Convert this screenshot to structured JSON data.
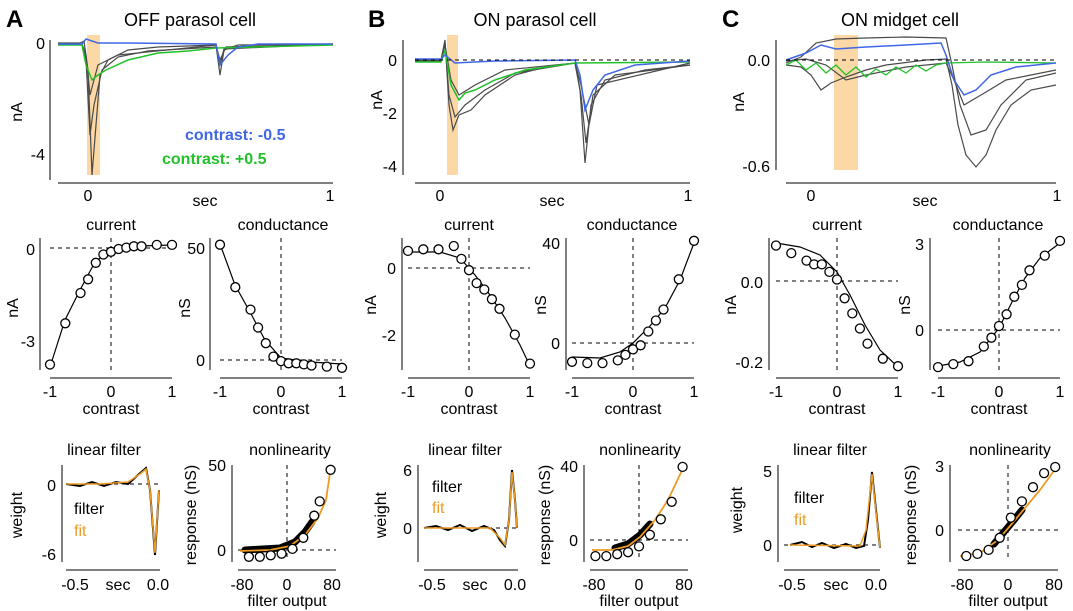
{
  "figure": {
    "colors": {
      "trace": "#4a4a4a",
      "blue": "#3f67e6",
      "green": "#21c12a",
      "orange": "#ee9b25",
      "shade": "#fbd8a5",
      "black": "#000000"
    },
    "columns": [
      {
        "letter": "A",
        "title": "OFF parasol cell",
        "legend": [
          "contrast: -0.5",
          "contrast: +0.5"
        ],
        "traces": {
          "xlabel": "sec",
          "ylabel": "nA",
          "xticks": [
            "0",
            "1"
          ],
          "yticks": [
            "0",
            "-4"
          ]
        },
        "current": {
          "title": "current",
          "xlabel": "contrast",
          "ylabel": "nA",
          "xticks": [
            "-1",
            "0",
            "1"
          ],
          "yticks": [
            "0",
            "-3"
          ]
        },
        "conductance": {
          "title": "conductance",
          "xlabel": "contrast",
          "ylabel": "nS",
          "xticks": [
            "-1",
            "0",
            "1"
          ],
          "yticks": [
            "50",
            "0"
          ]
        },
        "filter": {
          "title": "linear filter",
          "xlabel": "sec",
          "ylabel": "weight",
          "xticks": [
            "-0.5",
            "0.0"
          ],
          "yticks": [
            "0",
            "-6"
          ],
          "legend": [
            "filter",
            "fit"
          ]
        },
        "nonlin": {
          "title": "nonlinearity",
          "xlabel": "filter output",
          "ylabel": "response (nS)",
          "xticks": [
            "-80",
            "0",
            "80"
          ],
          "yticks": [
            "50",
            "0"
          ]
        }
      },
      {
        "letter": "B",
        "title": "ON parasol cell",
        "traces": {
          "xlabel": "sec",
          "ylabel": "nA",
          "xticks": [
            "0",
            "1"
          ],
          "yticks": [
            "0",
            "-2",
            "-4"
          ]
        },
        "current": {
          "title": "current",
          "xlabel": "contrast",
          "ylabel": "nA",
          "xticks": [
            "-1",
            "0",
            "1"
          ],
          "yticks": [
            "0",
            "-2"
          ]
        },
        "conductance": {
          "title": "conductance",
          "xlabel": "contrast",
          "ylabel": "nS",
          "xticks": [
            "-1",
            "0",
            "1"
          ],
          "yticks": [
            "40",
            "0"
          ]
        },
        "filter": {
          "title": "linear filter",
          "xlabel": "sec",
          "ylabel": "weight",
          "xticks": [
            "-0.5",
            "0.0"
          ],
          "yticks": [
            "6",
            "0"
          ],
          "legend": [
            "filter",
            "fit"
          ]
        },
        "nonlin": {
          "title": "nonlinearity",
          "xlabel": "filter output",
          "ylabel": "response (nS)",
          "xticks": [
            "-80",
            "0",
            "80"
          ],
          "yticks": [
            "40",
            "0"
          ]
        }
      },
      {
        "letter": "C",
        "title": "ON midget cell",
        "traces": {
          "xlabel": "sec",
          "ylabel": "nA",
          "xticks": [
            "0",
            "1"
          ],
          "yticks": [
            "0.0",
            "-0.6"
          ]
        },
        "current": {
          "title": "current",
          "xlabel": "contrast",
          "ylabel": "nA",
          "xticks": [
            "-1",
            "0",
            "1"
          ],
          "yticks": [
            "0.0",
            "-0.2"
          ]
        },
        "conductance": {
          "title": "conductance",
          "xlabel": "contrast",
          "ylabel": "nS",
          "xticks": [
            "-1",
            "0",
            "1"
          ],
          "yticks": [
            "3",
            "0"
          ]
        },
        "filter": {
          "title": "linear filter",
          "xlabel": "sec",
          "ylabel": "weight",
          "xticks": [
            "-0.5",
            "0.0"
          ],
          "yticks": [
            "5",
            "0"
          ],
          "legend": [
            "filter",
            "fit"
          ]
        },
        "nonlin": {
          "title": "nonlinearity",
          "xlabel": "filter output",
          "ylabel": "response (nS)",
          "xticks": [
            "-80",
            "0",
            "80"
          ],
          "yticks": [
            "3",
            "0"
          ]
        }
      }
    ]
  },
  "chart_data": [
    {
      "type": "line",
      "panel": "A current",
      "x": [
        -1,
        -0.75,
        -0.5,
        -0.375,
        -0.25,
        -0.125,
        0,
        0.125,
        0.25,
        0.375,
        0.5,
        0.75,
        1
      ],
      "y": [
        -4.2,
        -2.7,
        -1.6,
        -1.1,
        -0.5,
        -0.2,
        -0.1,
        0,
        0.05,
        0.1,
        0.1,
        0.15,
        0.15
      ],
      "ylim": [
        -4.4,
        0.4
      ]
    },
    {
      "type": "line",
      "panel": "A conductance",
      "x": [
        -1,
        -0.75,
        -0.5,
        -0.375,
        -0.25,
        -0.125,
        0,
        0.125,
        0.25,
        0.375,
        0.5,
        0.75,
        1
      ],
      "y": [
        53,
        34,
        24,
        16,
        9,
        3,
        1,
        0,
        0,
        -0.5,
        -1,
        -1.5,
        -2
      ],
      "ylim": [
        -3,
        56
      ]
    },
    {
      "type": "line",
      "panel": "B current",
      "x": [
        -1,
        -0.75,
        -0.5,
        -0.25,
        -0.125,
        0,
        0.125,
        0.25,
        0.375,
        0.5,
        0.75,
        1
      ],
      "y": [
        0.6,
        0.65,
        0.65,
        0.75,
        0.35,
        0,
        -0.4,
        -0.6,
        -0.9,
        -1.2,
        -2.0,
        -2.9
      ],
      "ylim": [
        -3.1,
        1.0
      ]
    },
    {
      "type": "line",
      "panel": "B conductance",
      "x": [
        -1,
        -0.75,
        -0.5,
        -0.25,
        -0.125,
        0,
        0.125,
        0.25,
        0.375,
        0.5,
        0.75,
        1
      ],
      "y": [
        -4,
        -4.5,
        -4.5,
        -3.5,
        -1.5,
        0.5,
        2,
        7,
        11,
        15,
        26,
        40
      ],
      "ylim": [
        -7,
        41
      ]
    },
    {
      "type": "line",
      "panel": "C current",
      "x": [
        -1,
        -0.75,
        -0.5,
        -0.375,
        -0.25,
        -0.125,
        0,
        0.125,
        0.25,
        0.375,
        0.5,
        0.75,
        1
      ],
      "y": [
        0.12,
        0.1,
        0.08,
        0.07,
        0.07,
        0.05,
        0.03,
        -0.02,
        -0.06,
        -0.1,
        -0.14,
        -0.18,
        -0.2
      ],
      "ylim": [
        -0.21,
        0.14
      ]
    },
    {
      "type": "line",
      "panel": "C conductance",
      "x": [
        -1,
        -0.75,
        -0.5,
        -0.25,
        -0.125,
        0,
        0.125,
        0.25,
        0.375,
        0.5,
        0.75,
        1
      ],
      "y": [
        -1.3,
        -1.2,
        -1.1,
        -0.6,
        -0.3,
        0.1,
        0.5,
        1.1,
        1.5,
        2.0,
        2.5,
        3.0
      ],
      "ylim": [
        -1.4,
        3.1
      ]
    },
    {
      "type": "scatter",
      "panel": "A nonlinearity",
      "x": [
        -70,
        -50,
        -30,
        -10,
        10,
        30,
        50,
        60,
        80
      ],
      "y": [
        -2,
        -2,
        -1,
        0,
        3,
        10,
        24,
        33,
        53
      ],
      "xlim": [
        -90,
        90
      ],
      "ylim": [
        -4,
        56
      ]
    },
    {
      "type": "scatter",
      "panel": "B nonlinearity",
      "x": [
        -80,
        -60,
        -40,
        -20,
        0,
        20,
        40,
        60,
        80
      ],
      "y": [
        -6,
        -6,
        -5,
        -4,
        -1,
        5,
        13,
        22,
        40
      ],
      "xlim": [
        -90,
        90
      ],
      "ylim": [
        -8,
        41
      ]
    },
    {
      "type": "scatter",
      "panel": "C nonlinearity",
      "x": [
        -75,
        -55,
        -35,
        -15,
        5,
        25,
        45,
        65,
        85
      ],
      "y": [
        -1.4,
        -1.3,
        -1.1,
        -0.5,
        0.5,
        1.3,
        2.0,
        2.7,
        3.0
      ],
      "xlim": [
        -90,
        90
      ],
      "ylim": [
        -1.6,
        3.1
      ]
    }
  ]
}
